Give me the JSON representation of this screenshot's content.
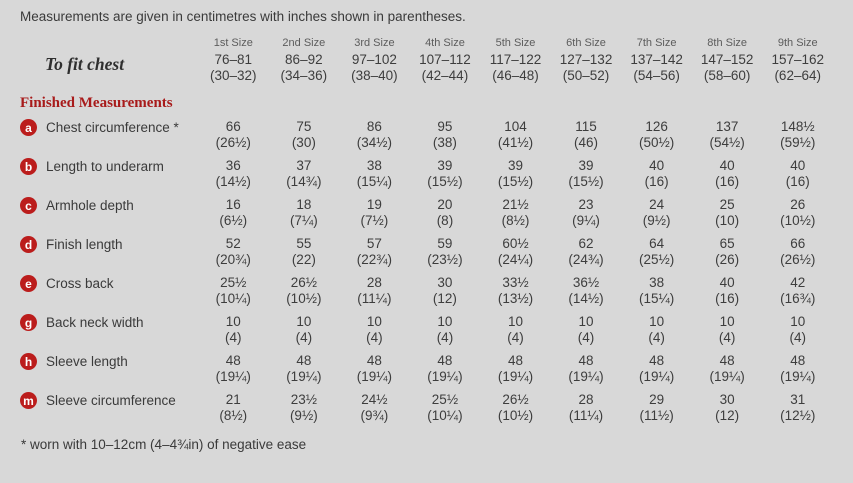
{
  "page": {
    "title": "Measurements are given in centimetres with inches shown in parentheses.",
    "footnote": "* worn with 10–12cm (4–4¾in) of negative ease"
  },
  "table": {
    "size_headers": [
      "1st Size",
      "2nd Size",
      "3rd Size",
      "4th Size",
      "5th Size",
      "6th Size",
      "7th Size",
      "8th Size",
      "9th Size"
    ],
    "to_fit_chest": {
      "label": "To fit chest",
      "cm": [
        "76–81",
        "86–92",
        "97–102",
        "107–112",
        "117–122",
        "127–132",
        "137–142",
        "147–152",
        "157–162"
      ],
      "inches": [
        "(30–32)",
        "(34–36)",
        "(38–40)",
        "(42–44)",
        "(46–48)",
        "(50–52)",
        "(54–56)",
        "(58–60)",
        "(62–64)"
      ]
    },
    "section_header": "Finished Measurements",
    "rows": [
      {
        "key": "a",
        "label": "Chest circumference *",
        "cm": [
          "66",
          "75",
          "86",
          "95",
          "104",
          "115",
          "126",
          "137",
          "148½"
        ],
        "inches": [
          "(26½)",
          "(30)",
          "(34½)",
          "(38)",
          "(41½)",
          "(46)",
          "(50½)",
          "(54½)",
          "(59½)"
        ]
      },
      {
        "key": "b",
        "label": "Length to underarm",
        "cm": [
          "36",
          "37",
          "38",
          "39",
          "39",
          "39",
          "40",
          "40",
          "40"
        ],
        "inches": [
          "(14½)",
          "(14¾)",
          "(15¼)",
          "(15½)",
          "(15½)",
          "(15½)",
          "(16)",
          "(16)",
          "(16)"
        ]
      },
      {
        "key": "c",
        "label": "Armhole depth",
        "cm": [
          "16",
          "18",
          "19",
          "20",
          "21½",
          "23",
          "24",
          "25",
          "26"
        ],
        "inches": [
          "(6½)",
          "(7¼)",
          "(7½)",
          "(8)",
          "(8½)",
          "(9¼)",
          "(9½)",
          "(10)",
          "(10½)"
        ]
      },
      {
        "key": "d",
        "label": "Finish length",
        "cm": [
          "52",
          "55",
          "57",
          "59",
          "60½",
          "62",
          "64",
          "65",
          "66"
        ],
        "inches": [
          "(20¾)",
          "(22)",
          "(22¾)",
          "(23½)",
          "(24¼)",
          "(24¾)",
          "(25½)",
          "(26)",
          "(26½)"
        ]
      },
      {
        "key": "e",
        "label": "Cross back",
        "cm": [
          "25½",
          "26½",
          "28",
          "30",
          "33½",
          "36½",
          "38",
          "40",
          "42"
        ],
        "inches": [
          "(10¼)",
          "(10½)",
          "(11¼)",
          "(12)",
          "(13½)",
          "(14½)",
          "(15¼)",
          "(16)",
          "(16¾)"
        ]
      },
      {
        "key": "g",
        "label": "Back neck width",
        "cm": [
          "10",
          "10",
          "10",
          "10",
          "10",
          "10",
          "10",
          "10",
          "10"
        ],
        "inches": [
          "(4)",
          "(4)",
          "(4)",
          "(4)",
          "(4)",
          "(4)",
          "(4)",
          "(4)",
          "(4)"
        ]
      },
      {
        "key": "h",
        "label": "Sleeve length",
        "cm": [
          "48",
          "48",
          "48",
          "48",
          "48",
          "48",
          "48",
          "48",
          "48"
        ],
        "inches": [
          "(19¼)",
          "(19¼)",
          "(19¼)",
          "(19¼)",
          "(19¼)",
          "(19¼)",
          "(19¼)",
          "(19¼)",
          "(19¼)"
        ]
      },
      {
        "key": "m",
        "label": "Sleeve circumference",
        "cm": [
          "21",
          "23½",
          "24½",
          "25½",
          "26½",
          "28",
          "29",
          "30",
          "31"
        ],
        "inches": [
          "(8½)",
          "(9½)",
          "(9¾)",
          "(10¼)",
          "(10½)",
          "(11¼)",
          "(11½)",
          "(12)",
          "(12½)"
        ]
      }
    ]
  },
  "colors": {
    "background": "#d8d8d8",
    "accent_red": "#bb1d1c",
    "heading_red": "#a81b1b",
    "text": "#3d3d3d"
  }
}
